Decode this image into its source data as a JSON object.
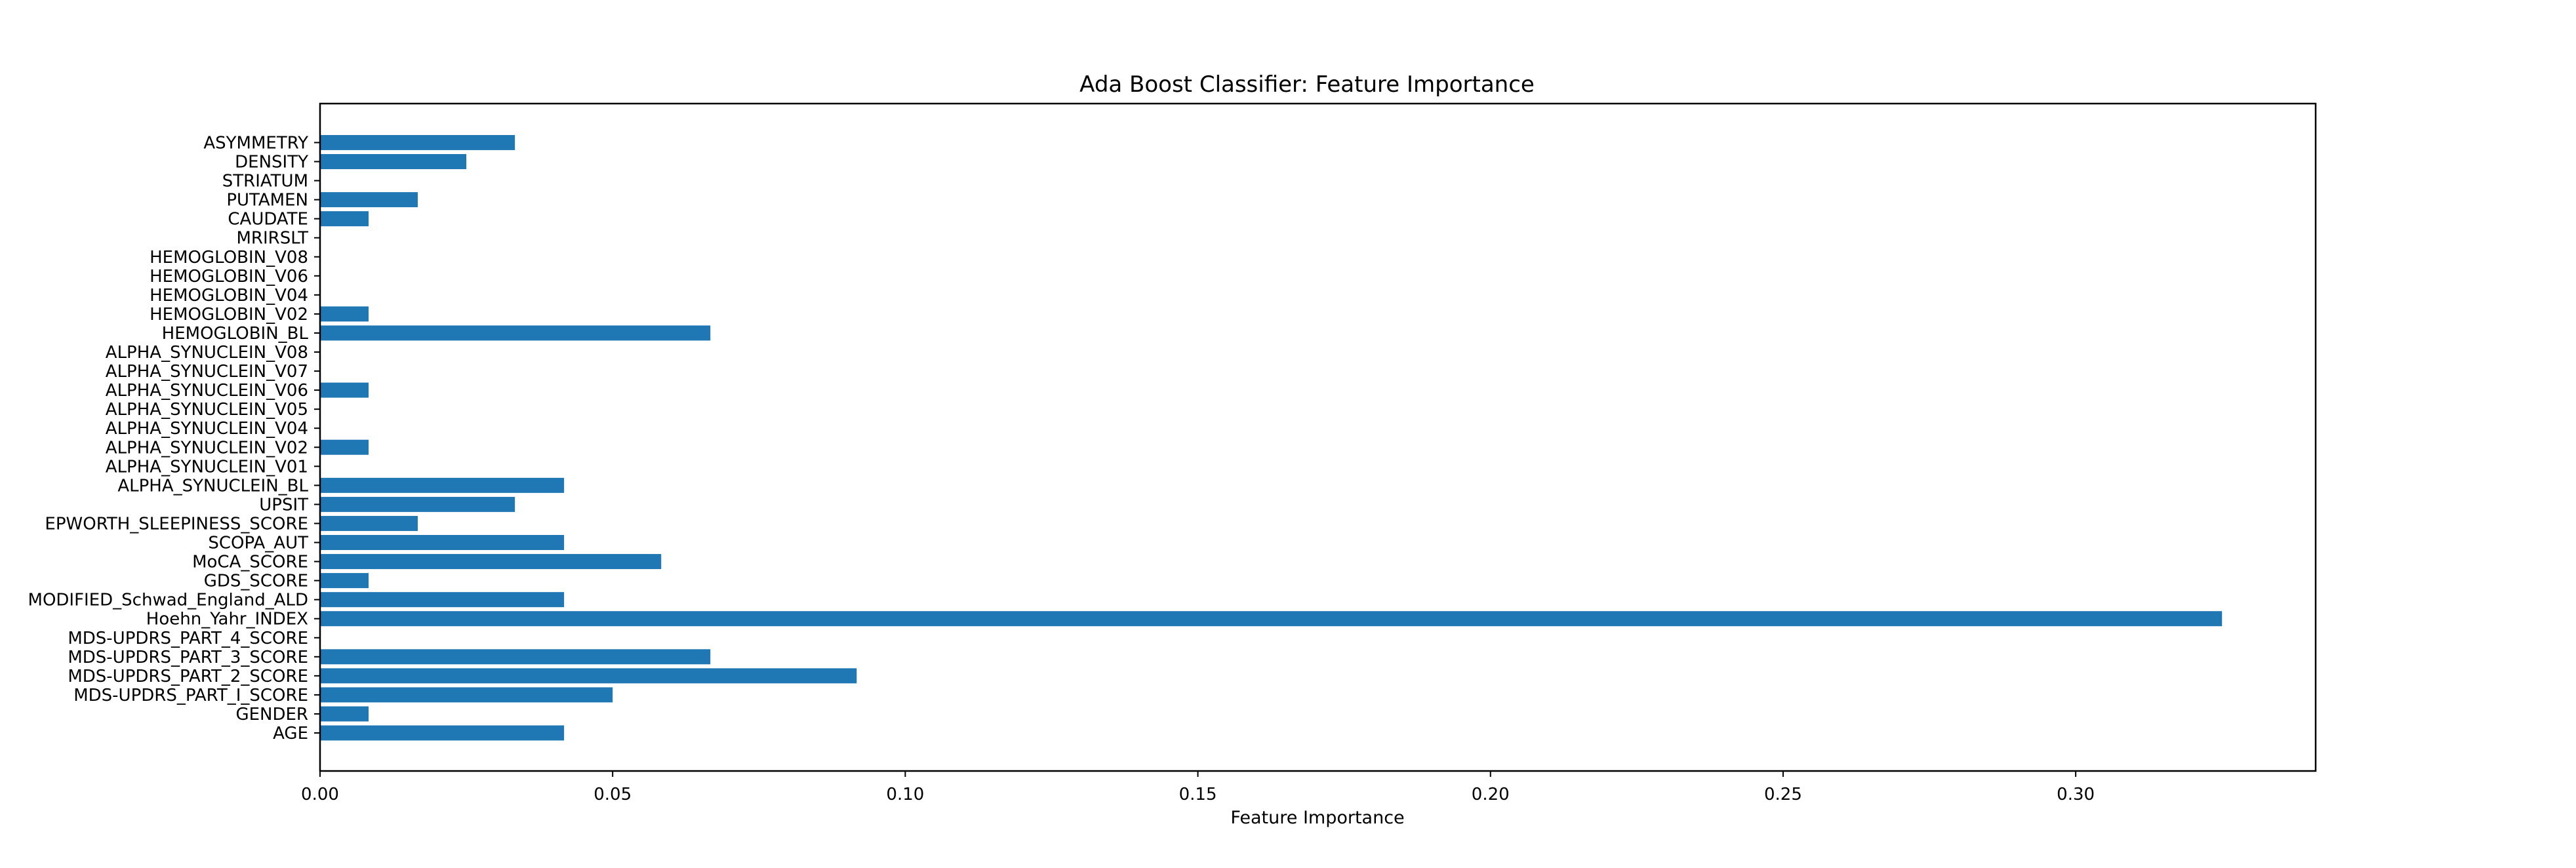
{
  "chart_data": {
    "type": "bar",
    "orientation": "horizontal",
    "title": "Ada Boost Classifier: Feature Importance",
    "xlabel": "Feature Importance",
    "ylabel": "",
    "xlim": [
      0,
      0.341
    ],
    "xticks": [
      0.0,
      0.05,
      0.1,
      0.15,
      0.2,
      0.25,
      0.3
    ],
    "xtick_labels": [
      "0.00",
      "0.05",
      "0.10",
      "0.15",
      "0.20",
      "0.25",
      "0.30"
    ],
    "grid": false,
    "bar_color": "#1f77b4",
    "categories": [
      "AGE",
      "GENDER",
      "MDS-UPDRS_PART_I_SCORE",
      "MDS-UPDRS_PART_2_SCORE",
      "MDS-UPDRS_PART_3_SCORE",
      "MDS-UPDRS_PART_4_SCORE",
      "Hoehn_Yahr_INDEX",
      "MODIFIED_Schwad_England_ALD",
      "GDS_SCORE",
      "MoCA_SCORE",
      "SCOPA_AUT",
      "EPWORTH_SLEEPINESS_SCORE",
      "UPSIT",
      "ALPHA_SYNUCLEIN_BL",
      "ALPHA_SYNUCLEIN_V01",
      "ALPHA_SYNUCLEIN_V02",
      "ALPHA_SYNUCLEIN_V04",
      "ALPHA_SYNUCLEIN_V05",
      "ALPHA_SYNUCLEIN_V06",
      "ALPHA_SYNUCLEIN_V07",
      "ALPHA_SYNUCLEIN_V08",
      "HEMOGLOBIN_BL",
      "HEMOGLOBIN_V02",
      "HEMOGLOBIN_V04",
      "HEMOGLOBIN_V06",
      "HEMOGLOBIN_V08",
      "MRIRSLT",
      "CAUDATE",
      "PUTAMEN",
      "STRIATUM",
      "DENSITY",
      "ASYMMETRY"
    ],
    "values": [
      0.0417,
      0.0083,
      0.05,
      0.0917,
      0.0667,
      0.0,
      0.325,
      0.0417,
      0.0083,
      0.0583,
      0.0417,
      0.0167,
      0.0333,
      0.0417,
      0.0,
      0.0083,
      0.0,
      0.0,
      0.0083,
      0.0,
      0.0,
      0.0667,
      0.0083,
      0.0,
      0.0,
      0.0,
      0.0,
      0.0083,
      0.0167,
      0.0,
      0.025,
      0.0333
    ]
  }
}
